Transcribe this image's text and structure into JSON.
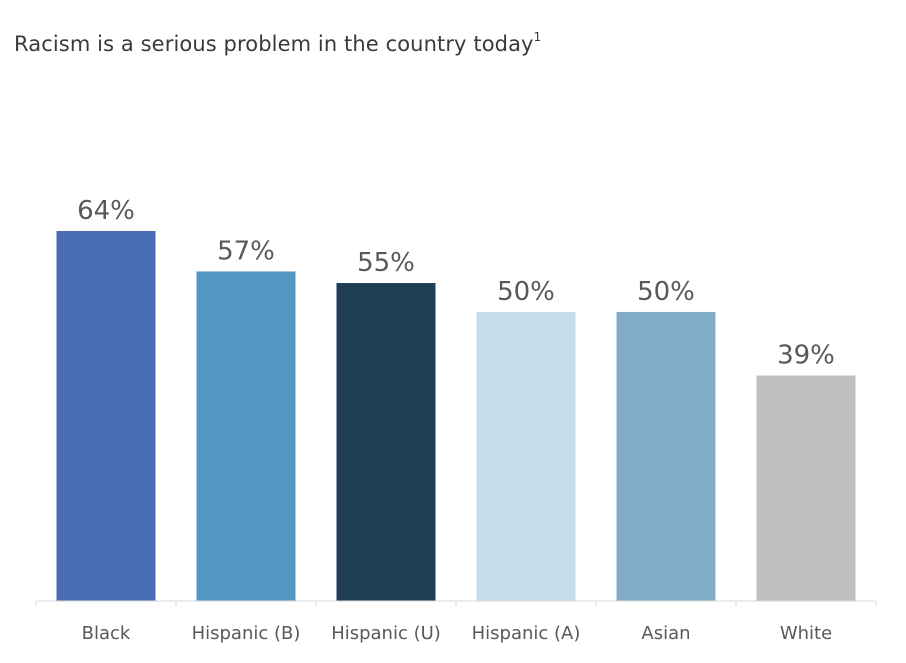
{
  "chart_data": {
    "type": "bar",
    "title": "Racism is a serious problem in the country today",
    "title_footnote": "1",
    "categories": [
      "Black",
      "Hispanic (B)",
      "Hispanic (U)",
      "Hispanic (A)",
      "Asian",
      "White"
    ],
    "values": [
      64,
      57,
      55,
      50,
      50,
      39
    ],
    "value_labels": [
      "64%",
      "57%",
      "55%",
      "50%",
      "50%",
      "39%"
    ],
    "colors": [
      "#4a6cb3",
      "#5597c4",
      "#1f3f57",
      "#c7ddea",
      "#82acc8",
      "#bfbfbf"
    ],
    "ylim": [
      0,
      64
    ],
    "grid": false,
    "legend": "none"
  }
}
